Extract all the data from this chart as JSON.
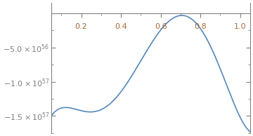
{
  "xlim": [
    0.05,
    1.05
  ],
  "ylim": [
    -1.75e+57,
    1.5e+56
  ],
  "xticks": [
    0.2,
    0.4,
    0.6,
    0.8,
    1.0
  ],
  "yticks": [
    -1.5e+57,
    -1e+57,
    -5e+56
  ],
  "ytick_labels": [
    "-1.5×10^57",
    "-1.0×10^57",
    "-5.0×10^56"
  ],
  "line_color": "#5588bb",
  "background_color": "#ffffff",
  "figsize": [
    3.6,
    1.94
  ],
  "dpi": 100
}
